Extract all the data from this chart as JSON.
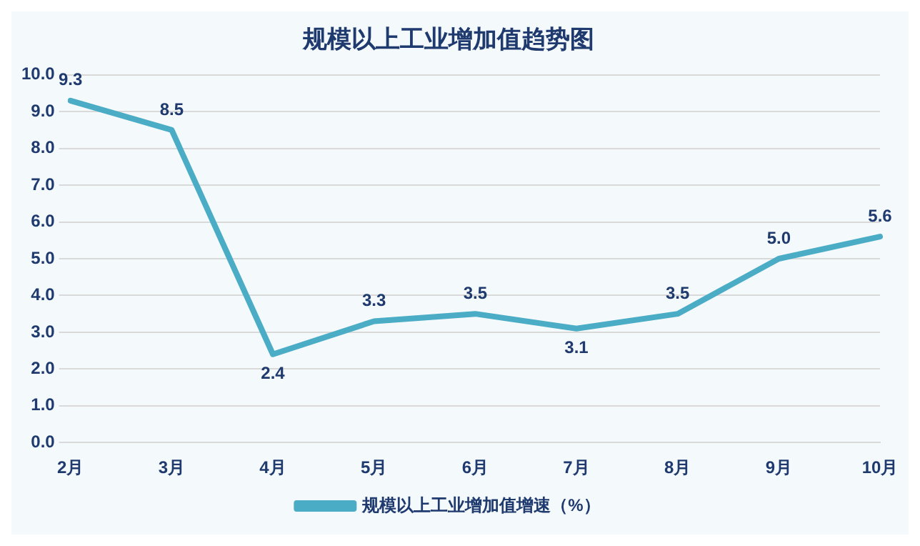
{
  "chart_data": {
    "type": "line",
    "title": "规模以上工业增加值趋势图",
    "categories": [
      "2月",
      "3月",
      "4月",
      "5月",
      "6月",
      "7月",
      "8月",
      "9月",
      "10月"
    ],
    "series": [
      {
        "name": "规模以上工业增加值增速（%）",
        "color": "#4bacc6",
        "values": [
          9.3,
          8.5,
          2.4,
          3.3,
          3.5,
          3.1,
          3.5,
          5.0,
          5.6
        ],
        "value_labels": [
          "9.3",
          "8.5",
          "2.4",
          "3.3",
          "3.5",
          "3.1",
          "3.5",
          "5.0",
          "5.6"
        ]
      }
    ],
    "ylim": [
      0,
      10
    ],
    "yticks": [
      {
        "value": 0,
        "label": "0.0"
      },
      {
        "value": 1,
        "label": "1.0"
      },
      {
        "value": 2,
        "label": "2.0"
      },
      {
        "value": 3,
        "label": "3.0"
      },
      {
        "value": 4,
        "label": "4.0"
      },
      {
        "value": 5,
        "label": "5.0"
      },
      {
        "value": 6,
        "label": "6.0"
      },
      {
        "value": 7,
        "label": "7.0"
      },
      {
        "value": 8,
        "label": "8.0"
      },
      {
        "value": 9,
        "label": "9.0"
      },
      {
        "value": 10,
        "label": "10.0"
      }
    ],
    "grid": "y",
    "legend": "bottom",
    "marker": "none",
    "line_style": "solid"
  }
}
